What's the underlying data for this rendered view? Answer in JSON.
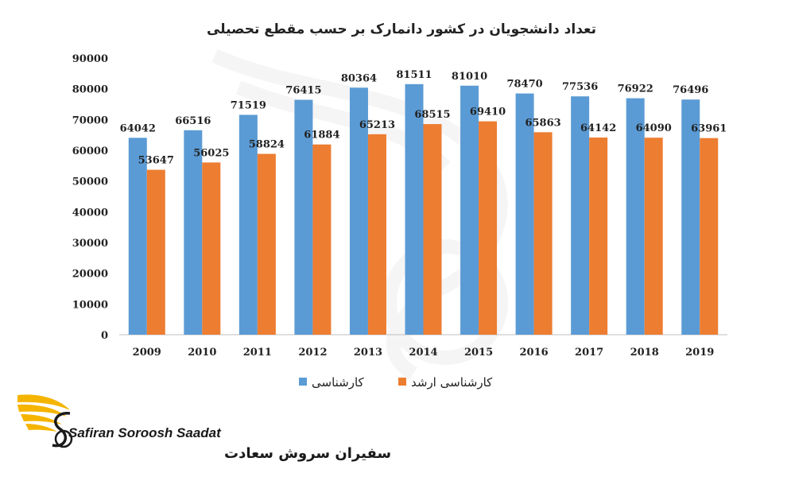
{
  "chart_data": {
    "type": "bar",
    "title": "تعداد دانشجویان در کشور دانمارک بر حسب مقطع تحصیلی",
    "categories": [
      "2009",
      "2010",
      "2011",
      "2012",
      "2013",
      "2014",
      "2015",
      "2016",
      "2017",
      "2018",
      "2019"
    ],
    "series": [
      {
        "name": "کارشناسی",
        "color": "#5B9BD5",
        "values": [
          64042,
          66516,
          71519,
          76415,
          80364,
          81511,
          81010,
          78470,
          77536,
          76922,
          76496
        ]
      },
      {
        "name": "کارشناسی ارشد",
        "color": "#ED7D31",
        "values": [
          53647,
          56025,
          58824,
          61884,
          65213,
          68515,
          69410,
          65863,
          64142,
          64090,
          63961
        ]
      }
    ],
    "ylim": [
      0,
      90000
    ],
    "yticks": [
      0,
      10000,
      20000,
      30000,
      40000,
      50000,
      60000,
      70000,
      80000,
      90000
    ],
    "grid": false,
    "legend_position": "bottom"
  },
  "logo": {
    "name_latin": "Safiran Soroosh Saadat",
    "name_farsi": "سفیران سروش سعادت",
    "colors": {
      "wing": "#F5B400",
      "text": "#1a1a1a"
    }
  }
}
